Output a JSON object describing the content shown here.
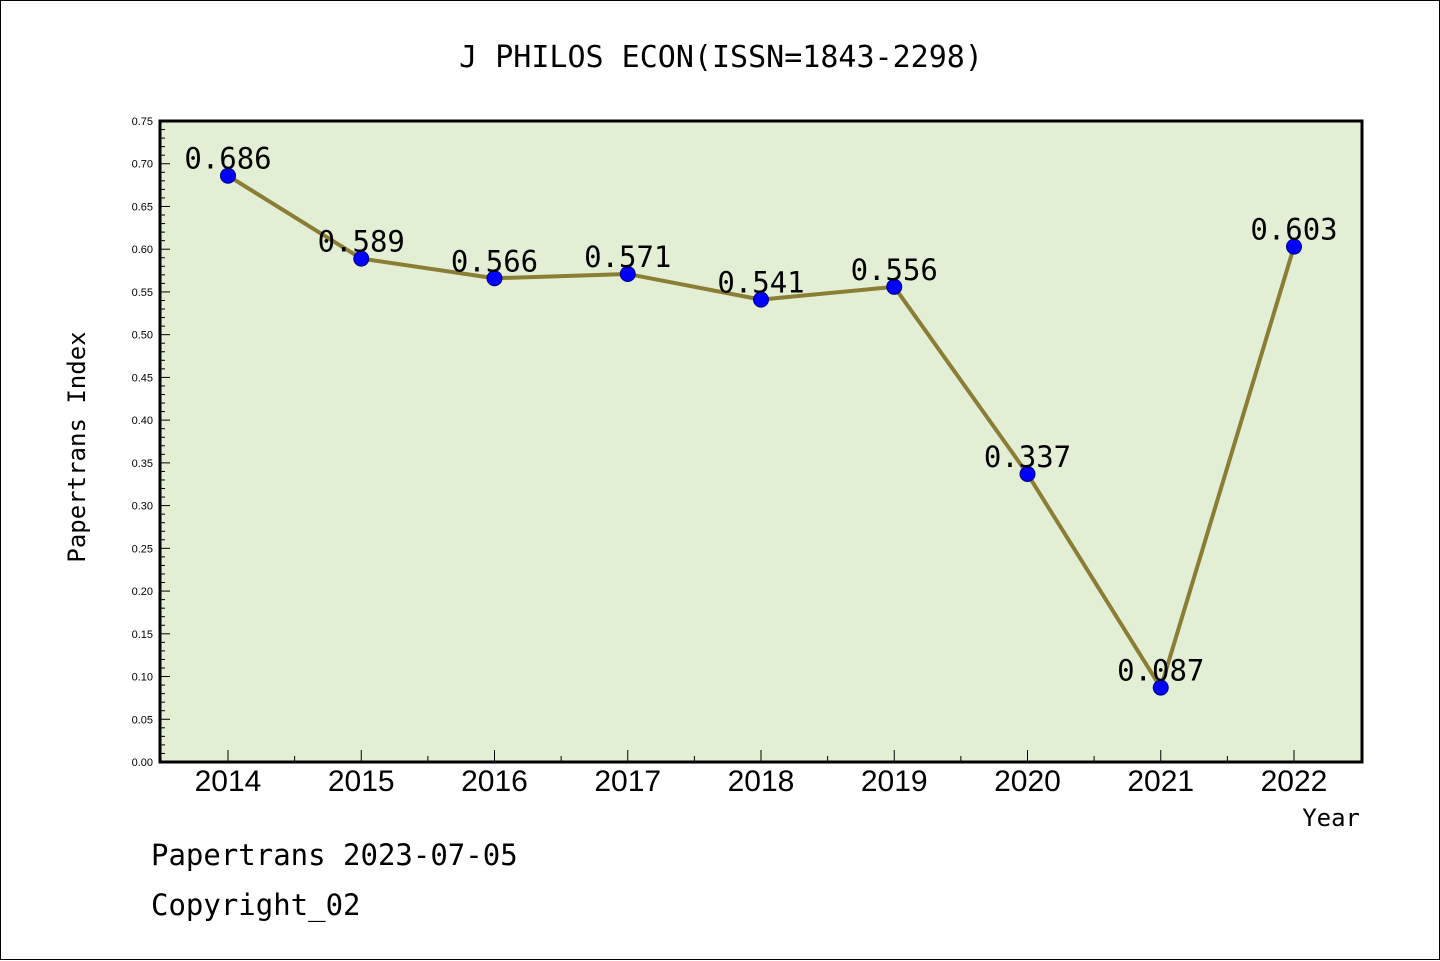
{
  "chart_data": {
    "type": "line",
    "title": "J PHILOS ECON(ISSN=1843-2298)",
    "xlabel": "Year",
    "ylabel": "Papertrans Index",
    "categories": [
      "2014",
      "2015",
      "2016",
      "2017",
      "2018",
      "2019",
      "2020",
      "2021",
      "2022"
    ],
    "series": [
      {
        "values": [
          0.686,
          0.589,
          0.566,
          0.571,
          0.541,
          0.556,
          0.337,
          0.087,
          0.603
        ]
      }
    ],
    "data_labels": [
      "0.686",
      "0.589",
      "0.566",
      "0.571",
      "0.541",
      "0.556",
      "0.337",
      "0.087",
      "0.603"
    ],
    "ylim": [
      0,
      0.75
    ],
    "yticks": [
      "0.00",
      "0.05",
      "0.10",
      "0.15",
      "0.20",
      "0.25",
      "0.30",
      "0.35",
      "0.40",
      "0.45",
      "0.50",
      "0.55",
      "0.60",
      "0.65",
      "0.70",
      "0.75"
    ],
    "grid": false,
    "colors": {
      "plot_background": "#e2efd4",
      "line": "#8b7d33",
      "marker": "#0000ff",
      "marker_edge": "#000080"
    }
  },
  "footer": {
    "date_line": "Papertrans 2023-07-05",
    "copyright": "Copyright_02"
  }
}
